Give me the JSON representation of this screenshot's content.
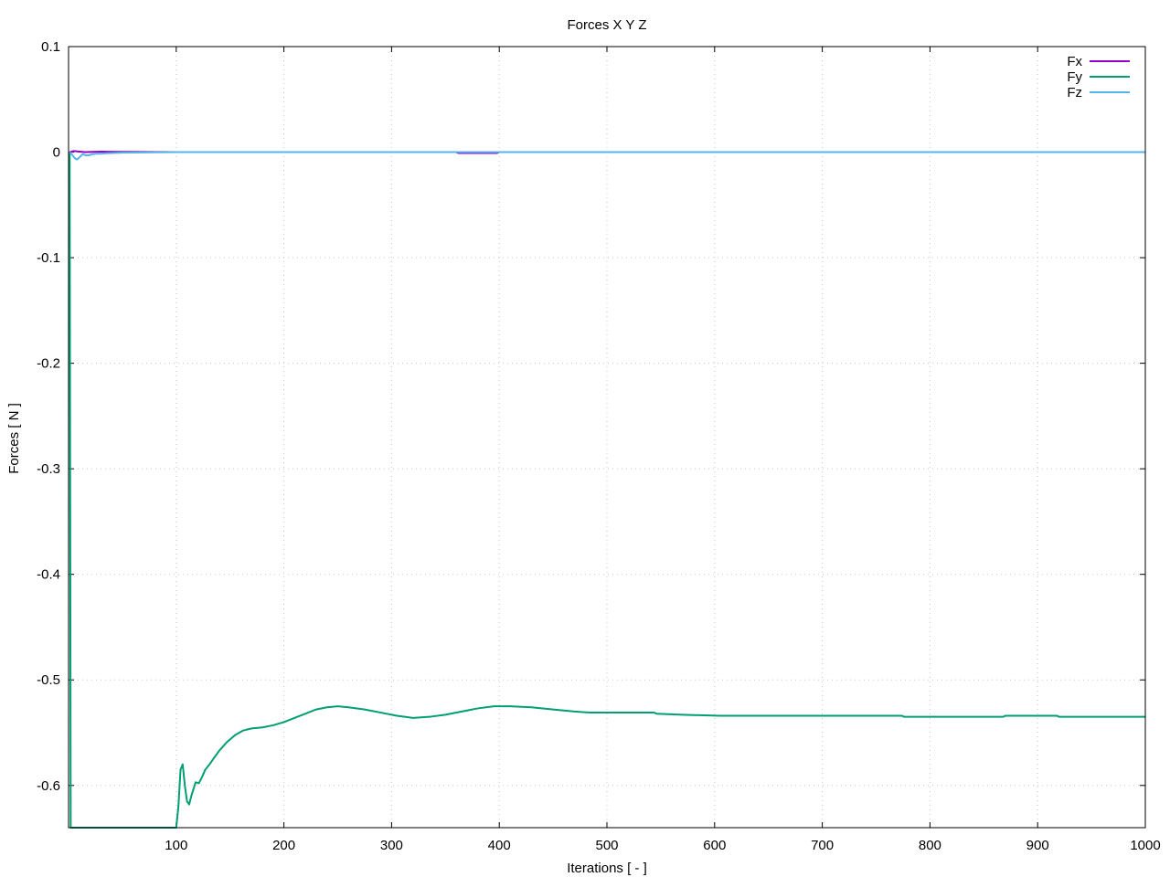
{
  "chart_data": {
    "type": "line",
    "title": "Forces X Y Z",
    "xlabel": "Iterations [ - ]",
    "ylabel": "Forces [ N ]",
    "xlim": [
      0,
      1000
    ],
    "ylim": [
      -0.64,
      0.1
    ],
    "xticks": [
      "100",
      "200",
      "300",
      "400",
      "500",
      "600",
      "700",
      "800",
      "900",
      "1000"
    ],
    "yticks": [
      "0.1",
      "0",
      "-0.1",
      "-0.2",
      "-0.3",
      "-0.4",
      "-0.5",
      "-0.6"
    ],
    "grid": true,
    "legend_position": "top-right",
    "series": [
      {
        "name": "Fx",
        "color": "#9400d3",
        "points": [
          [
            1,
            0.0
          ],
          [
            5,
            0.001
          ],
          [
            15,
            0.0
          ],
          [
            30,
            0.0005
          ],
          [
            50,
            0.0002
          ],
          [
            100,
            0.0
          ],
          [
            360,
            0.0
          ],
          [
            362,
            -0.0008
          ],
          [
            398,
            -0.0008
          ],
          [
            400,
            0.0
          ],
          [
            1000,
            0.0
          ]
        ]
      },
      {
        "name": "Fy",
        "color": "#009e73",
        "points": [
          [
            1,
            0.0
          ],
          [
            2,
            -0.64
          ],
          [
            100,
            -0.64
          ],
          [
            102,
            -0.62
          ],
          [
            104,
            -0.585
          ],
          [
            106,
            -0.58
          ],
          [
            108,
            -0.6
          ],
          [
            110,
            -0.615
          ],
          [
            112,
            -0.618
          ],
          [
            114,
            -0.61
          ],
          [
            118,
            -0.597
          ],
          [
            121,
            -0.598
          ],
          [
            124,
            -0.592
          ],
          [
            127,
            -0.585
          ],
          [
            131,
            -0.58
          ],
          [
            135,
            -0.574
          ],
          [
            140,
            -0.567
          ],
          [
            147,
            -0.559
          ],
          [
            155,
            -0.552
          ],
          [
            162,
            -0.548
          ],
          [
            170,
            -0.546
          ],
          [
            180,
            -0.545
          ],
          [
            190,
            -0.543
          ],
          [
            200,
            -0.54
          ],
          [
            210,
            -0.536
          ],
          [
            220,
            -0.532
          ],
          [
            230,
            -0.528
          ],
          [
            240,
            -0.526
          ],
          [
            250,
            -0.525
          ],
          [
            260,
            -0.526
          ],
          [
            275,
            -0.528
          ],
          [
            290,
            -0.531
          ],
          [
            305,
            -0.534
          ],
          [
            320,
            -0.536
          ],
          [
            335,
            -0.535
          ],
          [
            350,
            -0.533
          ],
          [
            365,
            -0.53
          ],
          [
            380,
            -0.527
          ],
          [
            395,
            -0.525
          ],
          [
            410,
            -0.525
          ],
          [
            430,
            -0.526
          ],
          [
            450,
            -0.528
          ],
          [
            470,
            -0.53
          ],
          [
            485,
            -0.531
          ],
          [
            500,
            -0.531
          ],
          [
            544,
            -0.531
          ],
          [
            546,
            -0.532
          ],
          [
            570,
            -0.533
          ],
          [
            605,
            -0.534
          ],
          [
            640,
            -0.534
          ],
          [
            774,
            -0.534
          ],
          [
            776,
            -0.535
          ],
          [
            868,
            -0.535
          ],
          [
            870,
            -0.534
          ],
          [
            918,
            -0.534
          ],
          [
            920,
            -0.535
          ],
          [
            1000,
            -0.535
          ]
        ]
      },
      {
        "name": "Fz",
        "color": "#56b4e9",
        "points": [
          [
            1,
            0.0
          ],
          [
            3,
            -0.002
          ],
          [
            6,
            -0.006
          ],
          [
            8,
            -0.007
          ],
          [
            10,
            -0.005
          ],
          [
            13,
            -0.002
          ],
          [
            16,
            -0.003
          ],
          [
            19,
            -0.003
          ],
          [
            22,
            -0.002
          ],
          [
            26,
            -0.0015
          ],
          [
            30,
            -0.0015
          ],
          [
            35,
            -0.001
          ],
          [
            42,
            -0.0008
          ],
          [
            50,
            -0.0005
          ],
          [
            70,
            -0.0003
          ],
          [
            100,
            0.0
          ],
          [
            1000,
            0.0
          ]
        ]
      }
    ]
  }
}
